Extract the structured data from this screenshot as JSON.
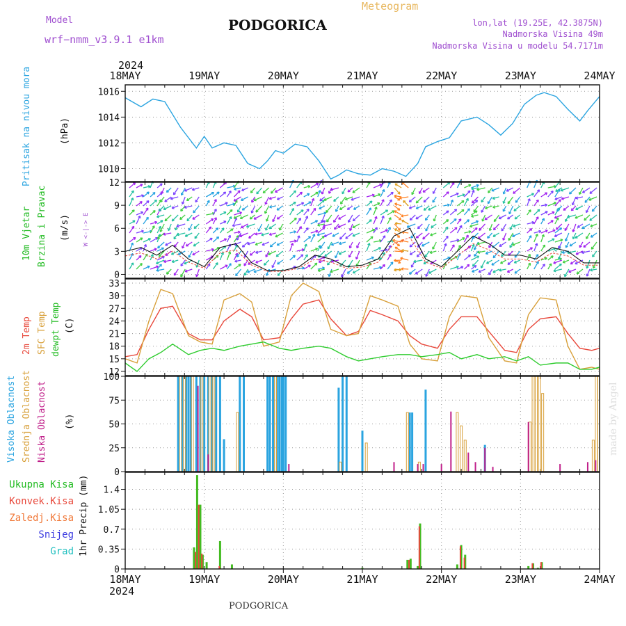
{
  "header": {
    "model_label": "Model",
    "model_name": "wrf−nmm_v3.9.1  e1km",
    "station": "PODGORICA",
    "meteogram": "Meteogram",
    "lonlat": "lon,lat (19.25E, 42.3875N)",
    "elevation": "Nadmorska Visina 49m",
    "model_elevation": "Nadmorska Visina u modelu 54.7171m",
    "watermark": "made by Angel",
    "footer_station": "PODGORICA"
  },
  "time_axis": {
    "year": "2024",
    "ticks": [
      "18MAY",
      "19MAY",
      "20MAY",
      "21MAY",
      "22MAY",
      "23MAY",
      "24MAY"
    ]
  },
  "colors": {
    "pressure": "#2aa4e0",
    "temp2m": "#e8473a",
    "sfc_temp": "#d8a03a",
    "dewpoint": "#2ecc2e",
    "wind_green": "#3fcf3f",
    "wind_purple": "#a020f0",
    "cloud_high": "#2aa4e0",
    "cloud_mid": "#d8a03a",
    "cloud_low": "#c0208a",
    "precip_total": "#44bb22",
    "precip_conv": "#e8473a",
    "precip_frozen": "#f07838",
    "precip_snow": "#3a3ae0",
    "precip_grad": "#22c0c0"
  },
  "chart_data": [
    {
      "type": "line",
      "panel": "pressure",
      "ylabel": [
        "Pritisak na nivou mora",
        "(hPa)"
      ],
      "ylim": [
        1009,
        1016.5
      ],
      "yticks": [
        1010,
        1012,
        1014,
        1016
      ],
      "x": [
        0,
        0.2,
        0.35,
        0.5,
        0.7,
        0.9,
        1.0,
        1.1,
        1.25,
        1.4,
        1.55,
        1.7,
        1.8,
        1.9,
        2.0,
        2.15,
        2.3,
        2.45,
        2.6,
        2.7,
        2.8,
        2.95,
        3.1,
        3.25,
        3.4,
        3.55,
        3.7,
        3.8,
        3.95,
        4.1,
        4.25,
        4.45,
        4.6,
        4.75,
        4.9,
        5.05,
        5.2,
        5.3,
        5.45,
        5.6,
        5.75,
        5.85,
        6.0
      ],
      "series": [
        {
          "key": "pressure",
          "values": [
            1015.5,
            1014.8,
            1015.4,
            1015.2,
            1013.2,
            1011.6,
            1012.5,
            1011.6,
            1012.0,
            1011.8,
            1010.4,
            1010.0,
            1010.6,
            1011.4,
            1011.2,
            1011.9,
            1011.7,
            1010.6,
            1009.2,
            1009.5,
            1009.9,
            1009.6,
            1009.5,
            1010.0,
            1009.8,
            1009.4,
            1010.4,
            1011.7,
            1012.1,
            1012.4,
            1013.7,
            1014.0,
            1013.4,
            1012.6,
            1013.5,
            1015.0,
            1015.7,
            1015.9,
            1015.6,
            1014.6,
            1013.7,
            1014.5,
            1015.6
          ]
        }
      ]
    },
    {
      "type": "line",
      "panel": "wind",
      "ylabel": [
        "10m Vjetar",
        "Brzina i Pravac",
        "(m/s)"
      ],
      "compass_label": "W <-|-> E",
      "ylim": [
        -0.5,
        12
      ],
      "yticks": [
        0,
        3,
        6,
        9,
        12
      ],
      "x": [
        0,
        0.2,
        0.4,
        0.6,
        0.8,
        1.0,
        1.2,
        1.4,
        1.6,
        1.8,
        2.0,
        2.2,
        2.4,
        2.6,
        2.8,
        3.0,
        3.2,
        3.4,
        3.6,
        3.8,
        4.0,
        4.2,
        4.4,
        4.6,
        4.8,
        5.0,
        5.2,
        5.4,
        5.6,
        5.8,
        6.0
      ],
      "series": [
        {
          "key": "wind_speed",
          "values": [
            3.0,
            3.5,
            2.5,
            3.8,
            2.0,
            1.0,
            3.5,
            4.0,
            1.5,
            0.5,
            0.5,
            1.0,
            2.5,
            2.0,
            1.0,
            1.2,
            2.0,
            5.0,
            6.0,
            2.0,
            1.0,
            3.0,
            5.0,
            4.0,
            2.5,
            2.5,
            2.0,
            3.5,
            3.0,
            1.5,
            1.5
          ]
        }
      ]
    },
    {
      "type": "line",
      "panel": "temperature",
      "ylabel": [
        "2m Temp",
        "SFC Temp",
        "dewpt Temp",
        "(C)"
      ],
      "ylim": [
        11,
        34
      ],
      "yticks": [
        12,
        15,
        18,
        21,
        24,
        27,
        30,
        33
      ],
      "x": [
        0,
        0.15,
        0.3,
        0.45,
        0.6,
        0.8,
        0.95,
        1.1,
        1.25,
        1.45,
        1.6,
        1.75,
        1.95,
        2.1,
        2.25,
        2.45,
        2.6,
        2.8,
        2.95,
        3.1,
        3.25,
        3.45,
        3.6,
        3.75,
        3.95,
        4.1,
        4.25,
        4.45,
        4.6,
        4.8,
        4.95,
        5.1,
        5.25,
        5.45,
        5.6,
        5.75,
        5.9,
        6.0
      ],
      "series": [
        {
          "key": "temp2m",
          "name": "2m Temp",
          "values": [
            15.5,
            16.0,
            22.0,
            27.0,
            27.5,
            21.0,
            19.5,
            19.5,
            24.0,
            26.8,
            25.0,
            19.5,
            20.0,
            24.5,
            28.0,
            29.0,
            24.5,
            20.5,
            21.5,
            26.5,
            25.5,
            24.0,
            20.5,
            18.5,
            17.5,
            22.0,
            25.0,
            25.0,
            21.5,
            17.0,
            16.5,
            22.0,
            24.5,
            25.0,
            21.0,
            17.5,
            17.0,
            17.5
          ]
        },
        {
          "key": "sfc_temp",
          "name": "SFC Temp",
          "values": [
            15.0,
            14.0,
            24.0,
            31.5,
            30.5,
            20.5,
            19.0,
            18.5,
            29.0,
            30.5,
            28.5,
            18.0,
            19.0,
            30.0,
            33.0,
            31.0,
            22.0,
            20.5,
            21.0,
            30.0,
            29.0,
            27.5,
            18.5,
            15.0,
            14.5,
            25.0,
            30.0,
            29.5,
            20.0,
            14.5,
            14.0,
            25.5,
            29.5,
            29.0,
            18.0,
            12.5,
            13.0,
            12.5
          ]
        },
        {
          "key": "dewpoint",
          "name": "dewpt Temp",
          "values": [
            14.0,
            12.0,
            15.0,
            16.5,
            18.5,
            16.0,
            17.0,
            17.5,
            17.0,
            18.0,
            18.5,
            19.0,
            17.5,
            17.0,
            17.5,
            18.0,
            17.5,
            15.5,
            14.5,
            15.0,
            15.5,
            16.0,
            16.0,
            15.5,
            16.0,
            16.5,
            15.0,
            16.0,
            15.0,
            15.5,
            14.5,
            15.5,
            13.5,
            14.0,
            14.0,
            12.5,
            12.5,
            13.0
          ]
        }
      ]
    },
    {
      "type": "bar",
      "panel": "clouds",
      "ylabel": [
        "Visoka Oblacnost",
        "Srednja Oblacnost",
        "Niska Oblacnost",
        "(%)"
      ],
      "ylim": [
        0,
        100
      ],
      "yticks": [
        0,
        25,
        50,
        75,
        100
      ],
      "series": [
        {
          "key": "cloud_high",
          "name": "Visoka Oblacnost",
          "points": [
            [
              0.67,
              100
            ],
            [
              0.72,
              100
            ],
            [
              0.77,
              100
            ],
            [
              0.8,
              100
            ],
            [
              0.83,
              100
            ],
            [
              0.9,
              100
            ],
            [
              0.95,
              100
            ],
            [
              1.0,
              100
            ],
            [
              1.05,
              100
            ],
            [
              1.1,
              100
            ],
            [
              1.15,
              100
            ],
            [
              1.2,
              100
            ],
            [
              1.25,
              34
            ],
            [
              1.45,
              100
            ],
            [
              1.5,
              100
            ],
            [
              1.8,
              100
            ],
            [
              1.83,
              100
            ],
            [
              1.87,
              100
            ],
            [
              1.92,
              100
            ],
            [
              1.95,
              100
            ],
            [
              1.98,
              100
            ],
            [
              2.0,
              100
            ],
            [
              2.03,
              100
            ],
            [
              2.7,
              88
            ],
            [
              2.75,
              100
            ],
            [
              2.8,
              100
            ],
            [
              3.0,
              43
            ],
            [
              3.6,
              62
            ],
            [
              3.63,
              62
            ],
            [
              3.8,
              86
            ],
            [
              4.55,
              28
            ]
          ]
        },
        {
          "key": "cloud_mid",
          "name": "Srednja Oblacnost",
          "points": [
            [
              0.7,
              100
            ],
            [
              0.75,
              100
            ],
            [
              0.85,
              100
            ],
            [
              0.97,
              100
            ],
            [
              1.07,
              100
            ],
            [
              1.12,
              100
            ],
            [
              1.42,
              62
            ],
            [
              1.9,
              100
            ],
            [
              2.72,
              10
            ],
            [
              3.05,
              30
            ],
            [
              3.57,
              62
            ],
            [
              3.72,
              10
            ],
            [
              4.2,
              62
            ],
            [
              4.25,
              48
            ],
            [
              4.3,
              33
            ],
            [
              5.12,
              52
            ],
            [
              5.16,
              100
            ],
            [
              5.2,
              100
            ],
            [
              5.24,
              100
            ],
            [
              5.28,
              82
            ],
            [
              5.92,
              33
            ],
            [
              5.96,
              100
            ],
            [
              5.99,
              100
            ]
          ]
        },
        {
          "key": "cloud_low",
          "name": "Niska Oblacnost",
          "points": [
            [
              0.92,
              90
            ],
            [
              1.05,
              18
            ],
            [
              2.07,
              8
            ],
            [
              3.4,
              10
            ],
            [
              3.7,
              8
            ],
            [
              3.77,
              8
            ],
            [
              4.0,
              8
            ],
            [
              4.12,
              63
            ],
            [
              4.34,
              20
            ],
            [
              4.43,
              10
            ],
            [
              4.55,
              25
            ],
            [
              4.65,
              5
            ],
            [
              5.1,
              52
            ],
            [
              5.5,
              8
            ],
            [
              5.85,
              10
            ],
            [
              5.95,
              12
            ]
          ]
        }
      ]
    },
    {
      "type": "bar",
      "panel": "precip",
      "ylabel": [
        "1hr Precip (mm)"
      ],
      "legend": [
        "Ukupna Kisa",
        "Konvek.Kisa",
        "Zaledj.Kisa",
        "Snijeg",
        "Grad"
      ],
      "ylim": [
        0,
        1.7
      ],
      "yticks": [
        "0",
        "0.35",
        "0.7",
        "1.05",
        "1.4"
      ],
      "series": [
        {
          "key": "precip_total",
          "name": "Ukupna Kisa",
          "points": [
            [
              0.87,
              0.38
            ],
            [
              0.91,
              1.65
            ],
            [
              0.95,
              1.13
            ],
            [
              0.98,
              0.25
            ],
            [
              1.03,
              0.12
            ],
            [
              1.2,
              0.49
            ],
            [
              1.35,
              0.08
            ],
            [
              3.0,
              0.02
            ],
            [
              3.57,
              0.16
            ],
            [
              3.61,
              0.18
            ],
            [
              3.7,
              0.05
            ],
            [
              3.73,
              0.8
            ],
            [
              4.2,
              0.08
            ],
            [
              4.25,
              0.42
            ],
            [
              4.3,
              0.25
            ],
            [
              5.1,
              0.05
            ],
            [
              5.16,
              0.1
            ],
            [
              5.22,
              0.02
            ],
            [
              5.27,
              0.12
            ]
          ]
        },
        {
          "key": "precip_conv",
          "name": "Konvek.Kisa",
          "points": [
            [
              0.89,
              0.3
            ],
            [
              0.93,
              1.13
            ],
            [
              0.97,
              0.27
            ],
            [
              1.19,
              0.05
            ],
            [
              3.59,
              0.16
            ],
            [
              3.72,
              0.75
            ],
            [
              4.24,
              0.4
            ],
            [
              4.29,
              0.2
            ],
            [
              5.15,
              0.1
            ],
            [
              5.26,
              0.12
            ]
          ]
        }
      ]
    }
  ]
}
